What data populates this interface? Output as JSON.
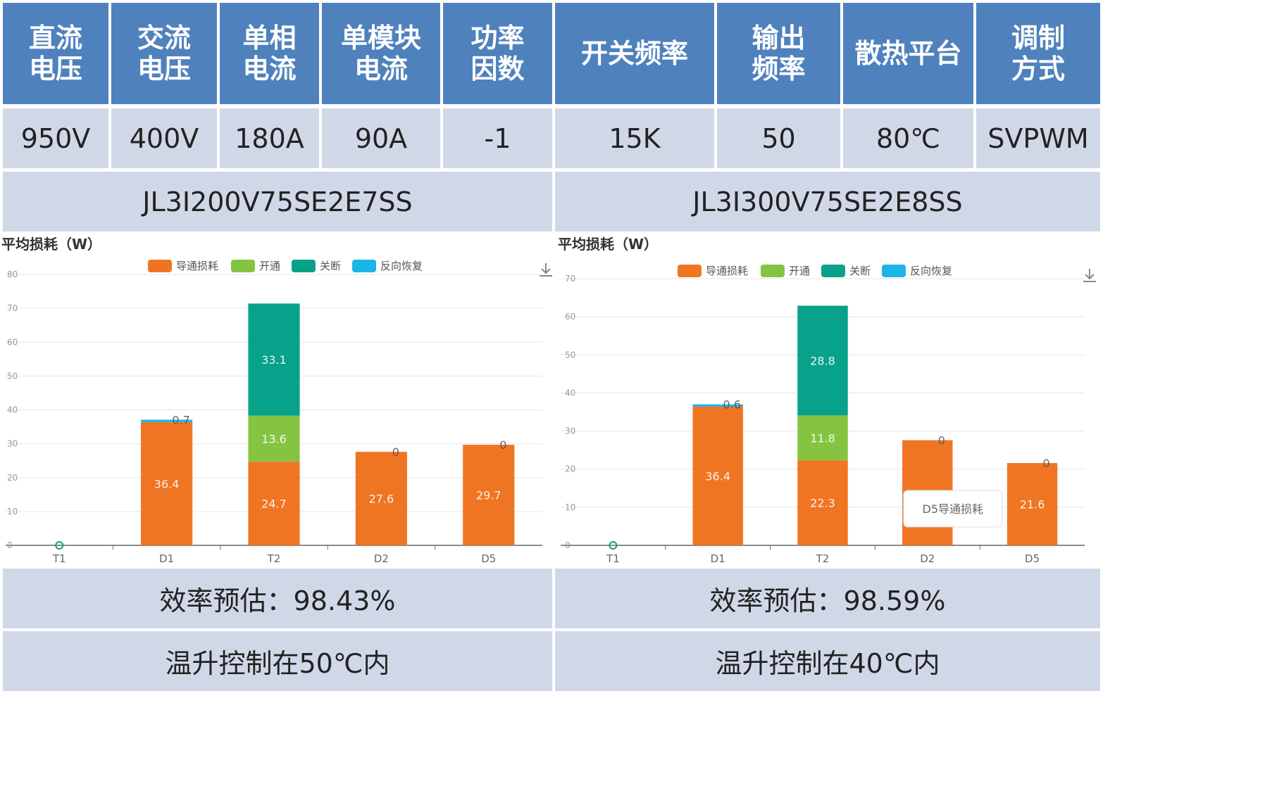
{
  "colors": {
    "header_bg": "#4f81bd",
    "cell_bg": "#d0d8e8",
    "conduction": "#f07522",
    "turn_on": "#85c441",
    "turn_off": "#08a18a",
    "reverse_recovery": "#1bb5e8"
  },
  "table": {
    "headers": [
      "直流\n电压",
      "交流\n电压",
      "单相\n电流",
      "单模块\n电流",
      "功率\n因数",
      "开关频率",
      "输出\n频率",
      "散热平台",
      "调制\n方式"
    ],
    "values": [
      "950V",
      "400V",
      "180A",
      "90A",
      "-1",
      "15K",
      "50",
      "80℃",
      "SVPWM"
    ]
  },
  "models": [
    "JL3I200V75SE2E7SS",
    "JL3I300V75SE2E8SS"
  ],
  "efficiency": [
    "效率预估：98.43%",
    "效率预估：98.59%"
  ],
  "temperature": [
    "温升控制在50℃内",
    "温升控制在40℃内"
  ],
  "icons": {
    "download": "download-icon"
  },
  "chart_data": [
    {
      "type": "bar",
      "stacked": true,
      "title": "平均损耗（W）",
      "categories": [
        "T1",
        "D1",
        "T2",
        "D2",
        "D5"
      ],
      "ylim": [
        0,
        80
      ],
      "yticks": [
        0,
        10,
        20,
        30,
        40,
        50,
        60,
        70,
        80
      ],
      "legend_position": "top",
      "series": [
        {
          "name": "导通损耗",
          "values": [
            0,
            36.4,
            24.7,
            27.6,
            29.7
          ]
        },
        {
          "name": "开通",
          "values": [
            0,
            0,
            13.6,
            0,
            0
          ]
        },
        {
          "name": "关断",
          "values": [
            0,
            0,
            33.1,
            0,
            0
          ]
        },
        {
          "name": "反向恢复",
          "values": [
            0,
            0.7,
            0,
            0,
            0
          ]
        }
      ],
      "labels": [
        {
          "category": "D1",
          "series": "导通损耗",
          "text": "36.4"
        },
        {
          "category": "D1",
          "series": "反向恢复",
          "text": "0.7"
        },
        {
          "category": "T2",
          "series": "导通损耗",
          "text": "24.7"
        },
        {
          "category": "T2",
          "series": "开通",
          "text": "13.6"
        },
        {
          "category": "T2",
          "series": "关断",
          "text": "33.1"
        },
        {
          "category": "D2",
          "series": "导通损耗",
          "text": "27.6"
        },
        {
          "category": "D2",
          "series": "反向恢复",
          "text": "0"
        },
        {
          "category": "D5",
          "series": "导通损耗",
          "text": "29.7"
        },
        {
          "category": "D5",
          "series": "反向恢复",
          "text": "0"
        }
      ]
    },
    {
      "type": "bar",
      "stacked": true,
      "title": "平均损耗（W）",
      "categories": [
        "T1",
        "D1",
        "T2",
        "D2",
        "D5"
      ],
      "ylim": [
        0,
        70
      ],
      "yticks": [
        0,
        10,
        20,
        30,
        40,
        50,
        60,
        70
      ],
      "legend_position": "top",
      "series": [
        {
          "name": "导通损耗",
          "values": [
            0,
            36.4,
            22.3,
            27.6,
            21.6
          ]
        },
        {
          "name": "开通",
          "values": [
            0,
            0,
            11.8,
            0,
            0
          ]
        },
        {
          "name": "关断",
          "values": [
            0,
            0,
            28.8,
            0,
            0
          ]
        },
        {
          "name": "反向恢复",
          "values": [
            0,
            0.6,
            0,
            0,
            0
          ]
        }
      ],
      "labels": [
        {
          "category": "D1",
          "series": "导通损耗",
          "text": "36.4"
        },
        {
          "category": "D1",
          "series": "反向恢复",
          "text": "0.6"
        },
        {
          "category": "T2",
          "series": "导通损耗",
          "text": "22.3"
        },
        {
          "category": "T2",
          "series": "开通",
          "text": "11.8"
        },
        {
          "category": "T2",
          "series": "关断",
          "text": "28.8"
        },
        {
          "category": "D2",
          "series": "反向恢复",
          "text": "0"
        },
        {
          "category": "D5",
          "series": "导通损耗",
          "text": "21.6"
        },
        {
          "category": "D5",
          "series": "反向恢复",
          "text": "0"
        }
      ],
      "tooltip": "D5导通损耗"
    }
  ]
}
